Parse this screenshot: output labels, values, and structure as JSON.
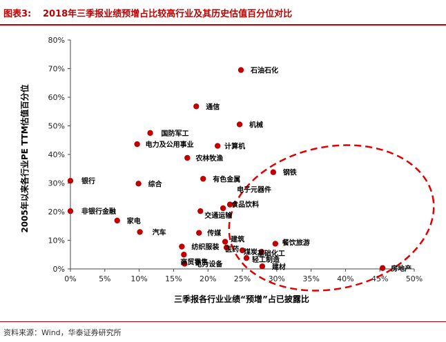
{
  "header": {
    "figure_label": "图表3:",
    "title": "2018年三季报业绩预增占比较高行业及其历史估值百分位对比"
  },
  "footer": {
    "source": "资料来源：Wind，华泰证券研究所"
  },
  "colors": {
    "accent": "#c00000",
    "point": "#c00000",
    "ellipse": "#e00000"
  },
  "chart_data": {
    "type": "scatter",
    "title": "",
    "xlabel": "三季报各行业业绩“预增”占已披露比",
    "ylabel": "2005年以来各行业PE TTM估值百分位",
    "xlim": [
      0,
      50
    ],
    "ylim": [
      0,
      80
    ],
    "xticks": [
      0,
      5,
      10,
      15,
      20,
      25,
      30,
      35,
      40,
      45,
      50
    ],
    "yticks": [
      0,
      10,
      20,
      30,
      40,
      50,
      60,
      70,
      80
    ],
    "x_tick_labels": [
      "0%",
      "5%",
      "10%",
      "15%",
      "20%",
      "25%",
      "30%",
      "35%",
      "40%",
      "45%",
      "50%"
    ],
    "y_tick_labels": [
      "0%",
      "10%",
      "20%",
      "30%",
      "40%",
      "50%",
      "60%",
      "70%",
      "80%"
    ],
    "grid": false,
    "highlight": "dashed ellipse around upper-right cluster",
    "points": [
      {
        "label": "石油石化",
        "x": 24.8,
        "y": 69.5
      },
      {
        "label": "通信",
        "x": 18.3,
        "y": 56.8
      },
      {
        "label": "机械",
        "x": 24.6,
        "y": 50.5
      },
      {
        "label": "国防军工",
        "x": 11.6,
        "y": 47.5
      },
      {
        "label": "电力及公用事业",
        "x": 9.7,
        "y": 43.6
      },
      {
        "label": "计算机",
        "x": 21.4,
        "y": 43.0
      },
      {
        "label": "农林牧渔",
        "x": 17.0,
        "y": 38.8
      },
      {
        "label": "钢铁",
        "x": 29.5,
        "y": 33.8
      },
      {
        "label": "银行",
        "x": 0.0,
        "y": 30.8
      },
      {
        "label": "综合",
        "x": 9.9,
        "y": 29.8
      },
      {
        "label": "有色金属",
        "x": 19.3,
        "y": 31.5
      },
      {
        "label": "电子元器件",
        "x": 23.2,
        "y": 22.5
      },
      {
        "label": "食品饮料",
        "x": 22.2,
        "y": 21.2
      },
      {
        "label": "交通运输",
        "x": 18.9,
        "y": 20.2
      },
      {
        "label": "非银行金融",
        "x": 0.0,
        "y": 20.2
      },
      {
        "label": "家电",
        "x": 6.8,
        "y": 16.9
      },
      {
        "label": "汽车",
        "x": 10.1,
        "y": 12.9
      },
      {
        "label": "传媒",
        "x": 18.7,
        "y": 12.6
      },
      {
        "label": "建筑",
        "x": 22.5,
        "y": 9.5
      },
      {
        "label": "医药",
        "x": 22.7,
        "y": 7.5
      },
      {
        "label": "煤炭",
        "x": 25.0,
        "y": 6.5
      },
      {
        "label": "纺织服装",
        "x": 16.2,
        "y": 7.8
      },
      {
        "label": "商贸零售",
        "x": 16.5,
        "y": 5.0
      },
      {
        "label": "餐饮旅游",
        "x": 29.8,
        "y": 8.8
      },
      {
        "label": "基础化工",
        "x": 27.8,
        "y": 6.0
      },
      {
        "label": "轻工制造",
        "x": 25.6,
        "y": 3.8
      },
      {
        "label": "电力设备",
        "x": 16.6,
        "y": 1.8
      },
      {
        "label": "建材",
        "x": 27.9,
        "y": 0.9
      },
      {
        "label": "房地产",
        "x": 45.4,
        "y": 0.3
      }
    ]
  }
}
